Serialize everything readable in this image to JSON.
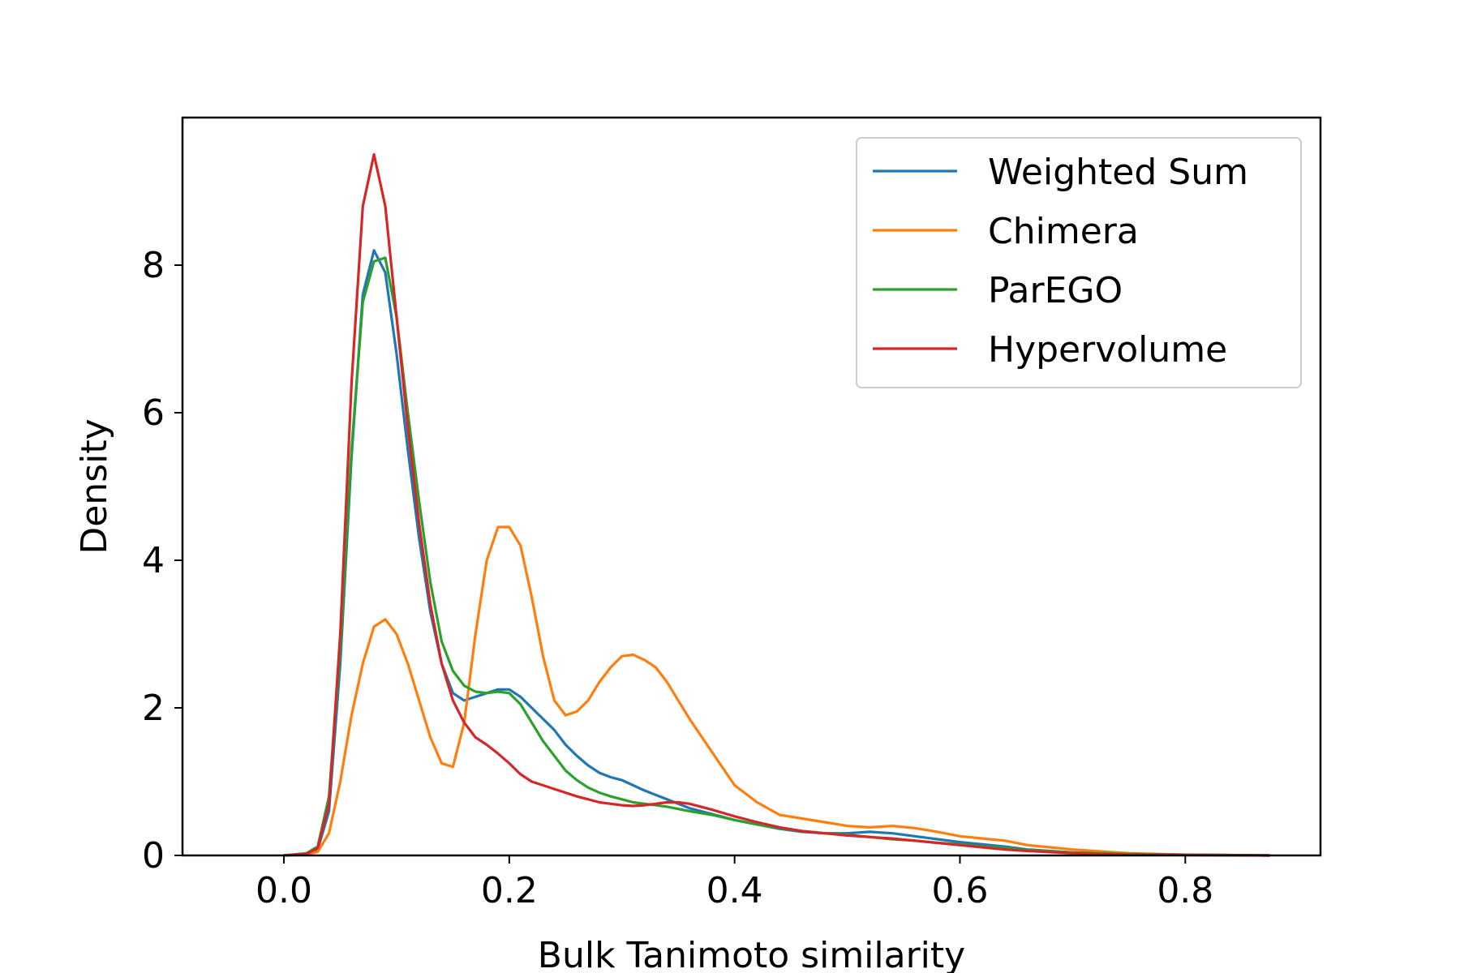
{
  "chart_data": {
    "type": "line",
    "title": "",
    "xlabel": "Bulk Tanimoto similarity",
    "ylabel": "Density",
    "xlim": [
      -0.09,
      0.92
    ],
    "ylim": [
      0,
      10.0
    ],
    "x_ticks": [
      0.0,
      0.2,
      0.4,
      0.6,
      0.8
    ],
    "x_tick_labels": [
      "0.0",
      "0.2",
      "0.4",
      "0.6",
      "0.8"
    ],
    "y_ticks": [
      0,
      2,
      4,
      6,
      8
    ],
    "y_tick_labels": [
      "0",
      "2",
      "4",
      "6",
      "8"
    ],
    "grid": false,
    "legend_position": "top-right",
    "series": [
      {
        "name": "Weighted Sum",
        "color": "#1f77b4",
        "x": [
          0.0,
          0.02,
          0.03,
          0.04,
          0.05,
          0.06,
          0.07,
          0.08,
          0.09,
          0.1,
          0.11,
          0.12,
          0.13,
          0.14,
          0.15,
          0.16,
          0.17,
          0.18,
          0.19,
          0.2,
          0.21,
          0.22,
          0.23,
          0.24,
          0.25,
          0.26,
          0.27,
          0.28,
          0.29,
          0.3,
          0.31,
          0.32,
          0.33,
          0.34,
          0.35,
          0.36,
          0.38,
          0.4,
          0.42,
          0.44,
          0.46,
          0.48,
          0.5,
          0.52,
          0.54,
          0.56,
          0.58,
          0.6,
          0.62,
          0.64,
          0.66,
          0.7,
          0.75,
          0.8,
          0.875
        ],
        "y": [
          0.0,
          0.02,
          0.08,
          0.6,
          2.6,
          5.4,
          7.6,
          8.2,
          7.9,
          6.8,
          5.5,
          4.3,
          3.3,
          2.6,
          2.2,
          2.1,
          2.15,
          2.2,
          2.25,
          2.25,
          2.15,
          2.0,
          1.85,
          1.7,
          1.5,
          1.35,
          1.22,
          1.12,
          1.06,
          1.02,
          0.95,
          0.88,
          0.82,
          0.76,
          0.7,
          0.64,
          0.56,
          0.48,
          0.42,
          0.36,
          0.32,
          0.3,
          0.3,
          0.32,
          0.3,
          0.26,
          0.22,
          0.18,
          0.15,
          0.12,
          0.08,
          0.04,
          0.02,
          0.01,
          0.0
        ]
      },
      {
        "name": "Chimera",
        "color": "#ff7f0e",
        "x": [
          0.0,
          0.02,
          0.03,
          0.04,
          0.05,
          0.06,
          0.07,
          0.08,
          0.09,
          0.1,
          0.11,
          0.12,
          0.13,
          0.14,
          0.15,
          0.16,
          0.17,
          0.18,
          0.19,
          0.2,
          0.21,
          0.22,
          0.23,
          0.24,
          0.25,
          0.26,
          0.27,
          0.28,
          0.29,
          0.3,
          0.31,
          0.32,
          0.33,
          0.34,
          0.35,
          0.36,
          0.38,
          0.4,
          0.42,
          0.44,
          0.46,
          0.48,
          0.5,
          0.52,
          0.54,
          0.56,
          0.58,
          0.6,
          0.62,
          0.64,
          0.66,
          0.7,
          0.75,
          0.8,
          0.875
        ],
        "y": [
          0.0,
          0.01,
          0.05,
          0.3,
          1.0,
          1.9,
          2.6,
          3.1,
          3.2,
          3.0,
          2.6,
          2.1,
          1.6,
          1.25,
          1.2,
          1.8,
          3.0,
          4.0,
          4.45,
          4.45,
          4.2,
          3.5,
          2.7,
          2.1,
          1.9,
          1.95,
          2.1,
          2.35,
          2.55,
          2.7,
          2.72,
          2.65,
          2.55,
          2.35,
          2.1,
          1.85,
          1.4,
          0.95,
          0.72,
          0.55,
          0.5,
          0.45,
          0.4,
          0.38,
          0.4,
          0.37,
          0.32,
          0.26,
          0.23,
          0.2,
          0.14,
          0.08,
          0.03,
          0.01,
          0.0
        ]
      },
      {
        "name": "ParEGO",
        "color": "#2ca02c",
        "x": [
          0.0,
          0.02,
          0.03,
          0.04,
          0.05,
          0.06,
          0.07,
          0.08,
          0.09,
          0.1,
          0.11,
          0.12,
          0.13,
          0.14,
          0.15,
          0.16,
          0.17,
          0.18,
          0.19,
          0.2,
          0.21,
          0.22,
          0.23,
          0.24,
          0.25,
          0.26,
          0.27,
          0.28,
          0.29,
          0.3,
          0.31,
          0.32,
          0.33,
          0.34,
          0.35,
          0.36,
          0.38,
          0.4,
          0.42,
          0.44,
          0.46,
          0.48,
          0.5,
          0.52,
          0.54,
          0.56,
          0.58,
          0.6,
          0.62,
          0.64,
          0.66,
          0.7,
          0.75,
          0.8,
          0.875
        ],
        "y": [
          0.0,
          0.03,
          0.12,
          0.8,
          2.8,
          5.5,
          7.5,
          8.05,
          8.1,
          7.3,
          6.0,
          4.8,
          3.7,
          2.9,
          2.5,
          2.3,
          2.22,
          2.2,
          2.22,
          2.2,
          2.05,
          1.8,
          1.55,
          1.35,
          1.15,
          1.02,
          0.92,
          0.85,
          0.8,
          0.76,
          0.72,
          0.7,
          0.68,
          0.66,
          0.63,
          0.6,
          0.55,
          0.48,
          0.42,
          0.37,
          0.33,
          0.3,
          0.28,
          0.25,
          0.22,
          0.2,
          0.17,
          0.15,
          0.12,
          0.1,
          0.07,
          0.04,
          0.02,
          0.01,
          0.0
        ]
      },
      {
        "name": "Hypervolume",
        "color": "#d62728",
        "x": [
          0.0,
          0.02,
          0.03,
          0.04,
          0.05,
          0.06,
          0.07,
          0.08,
          0.09,
          0.1,
          0.11,
          0.12,
          0.13,
          0.14,
          0.15,
          0.16,
          0.17,
          0.18,
          0.19,
          0.2,
          0.21,
          0.22,
          0.23,
          0.24,
          0.25,
          0.26,
          0.27,
          0.28,
          0.29,
          0.3,
          0.31,
          0.32,
          0.33,
          0.34,
          0.35,
          0.36,
          0.38,
          0.4,
          0.42,
          0.44,
          0.46,
          0.48,
          0.5,
          0.52,
          0.54,
          0.56,
          0.58,
          0.6,
          0.62,
          0.64,
          0.66,
          0.7,
          0.75,
          0.8,
          0.875
        ],
        "y": [
          0.0,
          0.02,
          0.1,
          0.7,
          3.0,
          6.4,
          8.8,
          9.5,
          8.8,
          7.3,
          5.8,
          4.5,
          3.4,
          2.6,
          2.1,
          1.8,
          1.6,
          1.5,
          1.38,
          1.25,
          1.1,
          1.0,
          0.95,
          0.9,
          0.85,
          0.8,
          0.76,
          0.72,
          0.7,
          0.68,
          0.67,
          0.68,
          0.7,
          0.72,
          0.72,
          0.7,
          0.62,
          0.53,
          0.45,
          0.38,
          0.33,
          0.3,
          0.27,
          0.25,
          0.23,
          0.2,
          0.17,
          0.14,
          0.11,
          0.08,
          0.06,
          0.03,
          0.01,
          0.005,
          0.0
        ]
      }
    ]
  }
}
